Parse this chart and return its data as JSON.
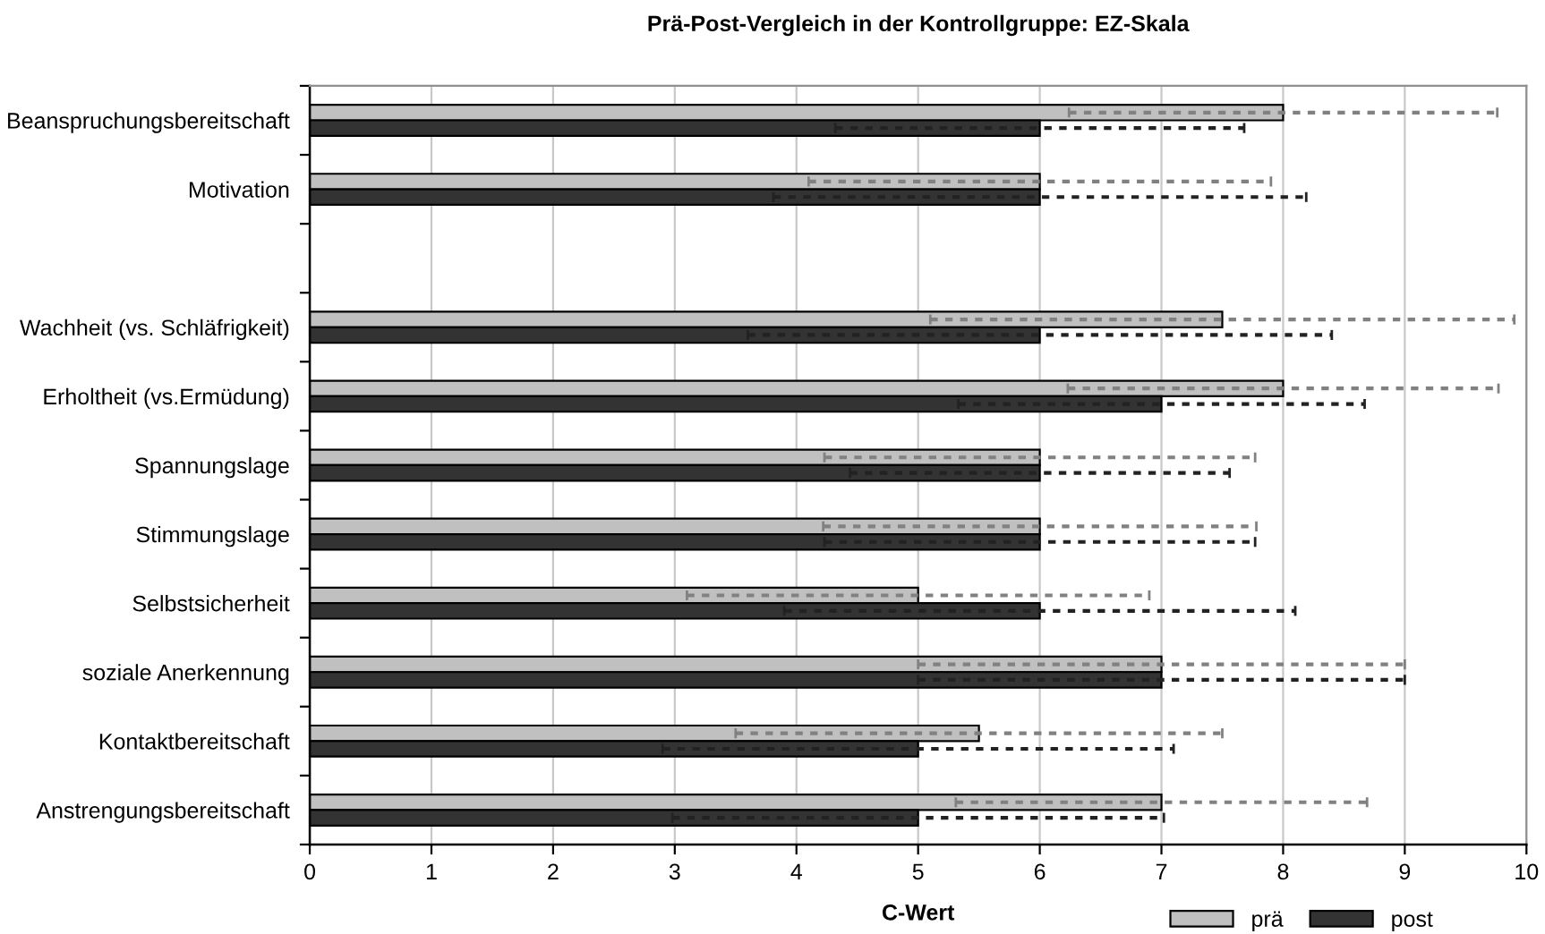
{
  "chart_data": {
    "type": "bar",
    "orientation": "horizontal",
    "title": "Prä-Post-Vergleich in der Kontrollgruppe: EZ-Skala",
    "xlabel": "C-Wert",
    "categories": [
      "Beanspruchungsbereitschaft",
      "Motivation",
      null,
      "Wachheit (vs. Schläfrigkeit)",
      "Erholtheit (vs.Ermüdung)",
      "Spannungslage",
      "Stimmungslage",
      "Selbstsicherheit",
      "soziale Anerkennung",
      "Kontaktbereitschaft",
      "Anstrengungsbereitschaft"
    ],
    "series": [
      {
        "name": "prä",
        "color": "#c0c0c0",
        "values": [
          8,
          6,
          null,
          7.5,
          8,
          6,
          6,
          5,
          7,
          5.5,
          7
        ],
        "errors": [
          1.76,
          1.9,
          null,
          2.4,
          1.77,
          1.77,
          1.78,
          1.9,
          2.0,
          2.0,
          1.69
        ]
      },
      {
        "name": "post",
        "color": "#333333",
        "values": [
          6,
          6,
          null,
          6,
          7,
          6,
          6,
          6,
          7,
          5,
          5
        ],
        "errors": [
          1.68,
          2.19,
          null,
          2.4,
          1.67,
          1.56,
          1.77,
          2.1,
          2.0,
          2.1,
          2.02
        ]
      }
    ],
    "xlim": [
      0,
      10
    ],
    "xticks": [
      0,
      1,
      2,
      3,
      4,
      5,
      6,
      7,
      8,
      9,
      10
    ],
    "grid": "x",
    "legend": "bottom right"
  }
}
